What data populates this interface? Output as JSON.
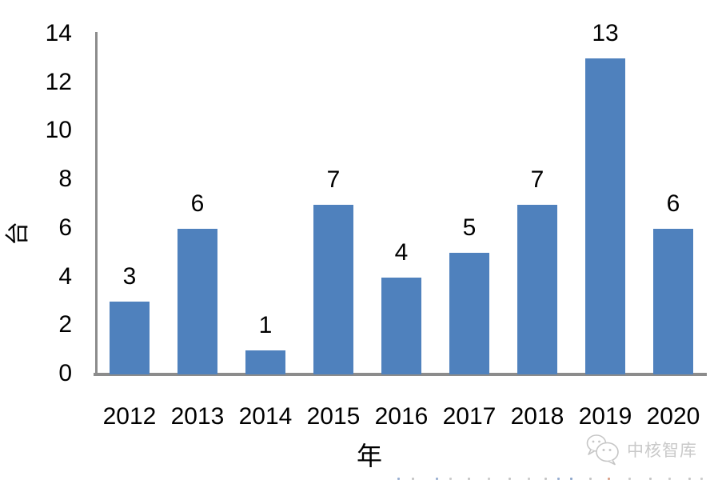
{
  "chart_data": {
    "type": "bar",
    "categories": [
      "2012",
      "2013",
      "2014",
      "2015",
      "2016",
      "2017",
      "2018",
      "2019",
      "2020"
    ],
    "values": [
      3,
      6,
      1,
      7,
      4,
      5,
      7,
      13,
      6
    ],
    "title": "",
    "xlabel": "年",
    "ylabel": "台",
    "ylim": [
      0,
      14
    ],
    "yticks": [
      0,
      2,
      4,
      6,
      8,
      10,
      12,
      14
    ],
    "data_labels": [
      3,
      6,
      1,
      7,
      4,
      5,
      7,
      13,
      6
    ],
    "grid": false,
    "legend": false,
    "bar_color": "#4F81BD",
    "axis_color": "#8C8C8C",
    "label_color": "#000000"
  },
  "watermark": {
    "icon": "wechat-chat-bubbles-icon",
    "text": "中核智库",
    "color": "#C9C9C9"
  }
}
